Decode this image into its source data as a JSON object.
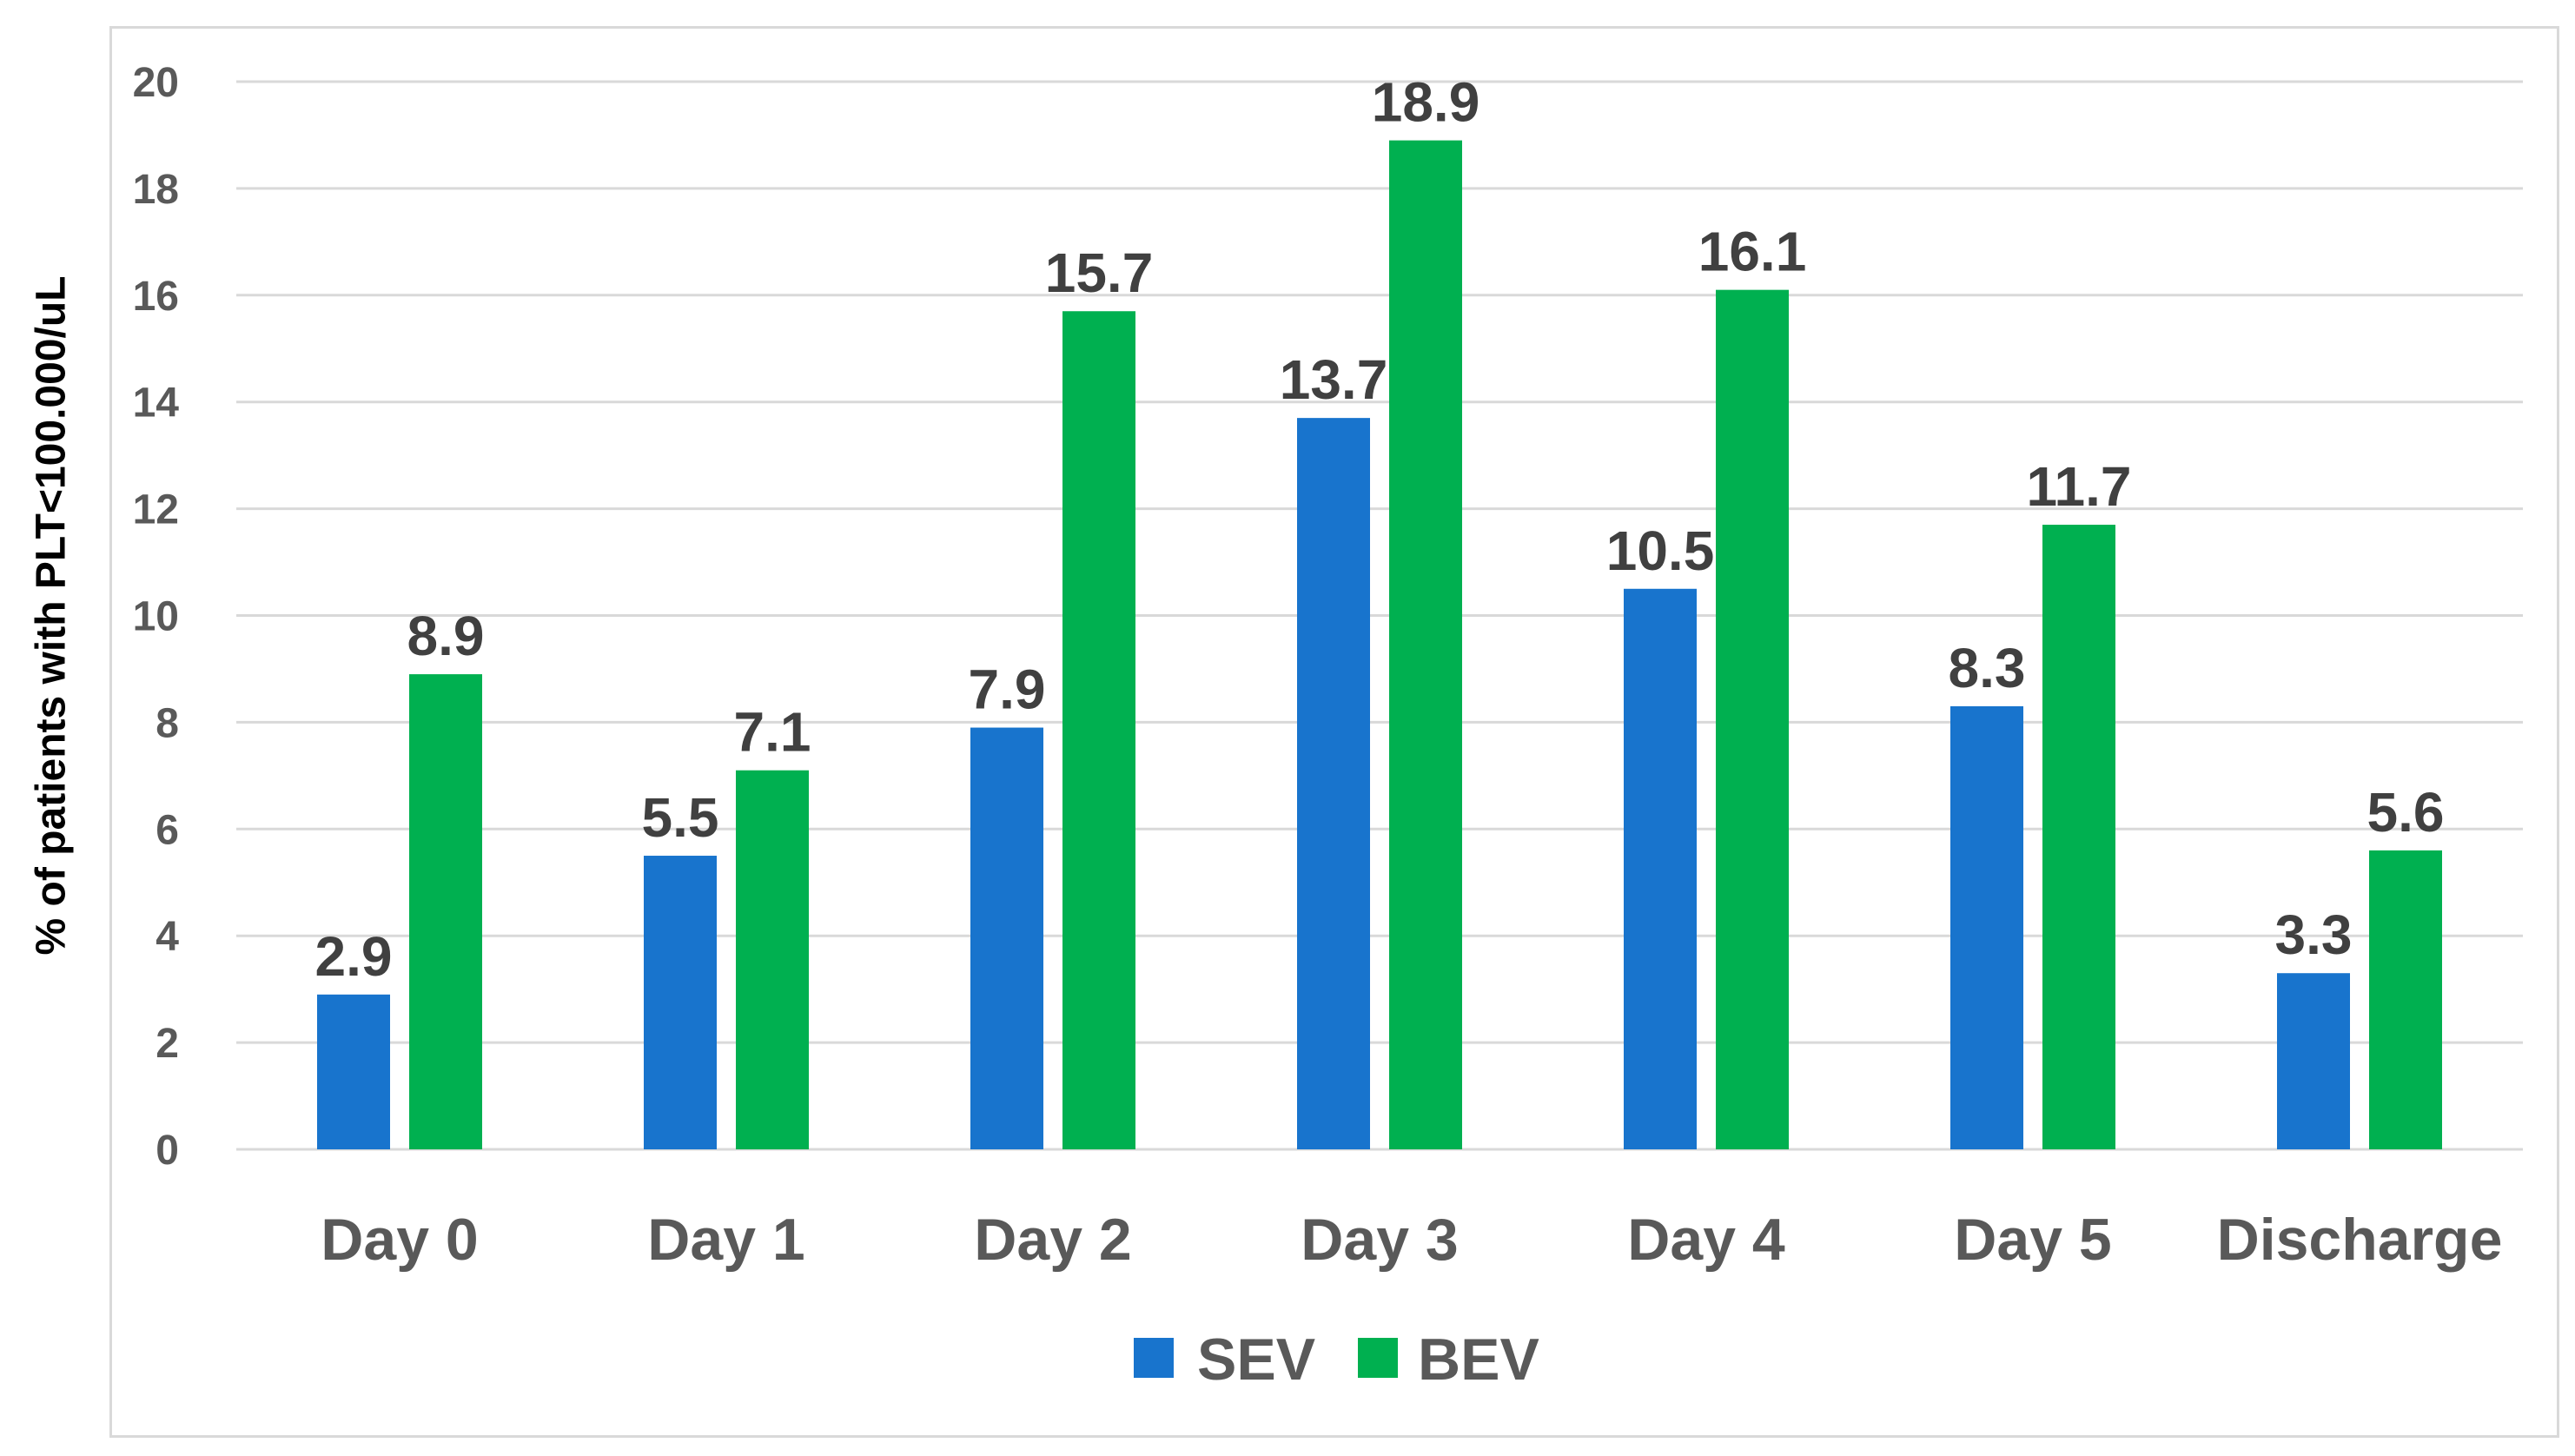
{
  "chart_data": {
    "type": "bar",
    "title": "",
    "xlabel": "",
    "ylabel": "% of patients with PLT<100.000/uL",
    "ylim": [
      0,
      20
    ],
    "yticks": [
      0,
      2,
      4,
      6,
      8,
      10,
      12,
      14,
      16,
      18,
      20
    ],
    "grid": true,
    "legend_position": "bottom",
    "categories": [
      "Day 0",
      "Day 1",
      "Day 2",
      "Day 3",
      "Day 4",
      "Day 5",
      "Discharge"
    ],
    "series": [
      {
        "name": "SEV",
        "color": "#1874cd",
        "values": [
          2.9,
          5.5,
          7.9,
          13.7,
          10.5,
          8.3,
          3.3
        ],
        "labels": [
          "2.9",
          "5.5",
          "7.9",
          "13.7",
          "10.5",
          "8.3",
          "3.3"
        ]
      },
      {
        "name": "BEV",
        "color": "#00b050",
        "values": [
          8.9,
          7.1,
          15.7,
          18.9,
          16.1,
          11.7,
          5.6
        ],
        "labels": [
          "8.9",
          "7.1",
          "15.7",
          "18.9",
          "16.1",
          "11.7",
          "5.6"
        ]
      }
    ]
  }
}
